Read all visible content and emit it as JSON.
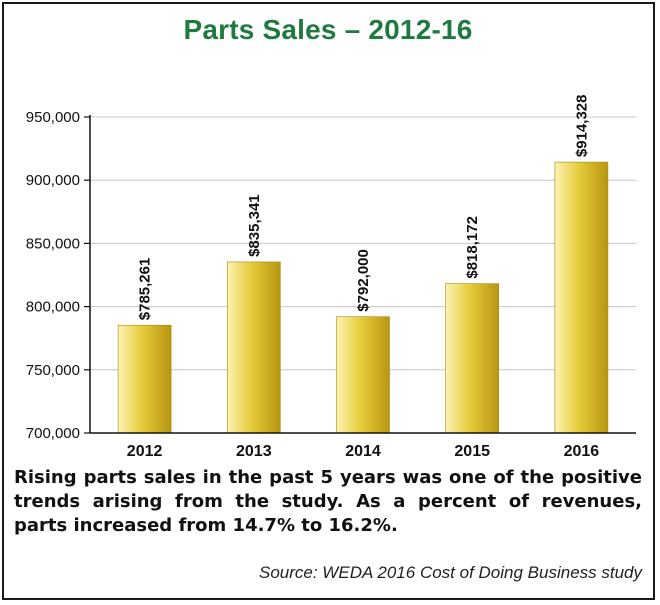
{
  "chart_data": {
    "type": "bar",
    "title": "Parts Sales – 2012-16",
    "categories": [
      "2012",
      "2013",
      "2014",
      "2015",
      "2016"
    ],
    "values": [
      785261,
      835341,
      792000,
      818172,
      914328
    ],
    "data_labels": [
      "$785,261",
      "$835,341",
      "$792,000",
      "$818,172",
      "$914,328"
    ],
    "ylim": [
      700000,
      950000
    ],
    "yticks": [
      700000,
      750000,
      800000,
      850000,
      900000,
      950000
    ],
    "ytick_labels": [
      "700,000",
      "750,000",
      "800,000",
      "850,000",
      "900,000",
      "950,000"
    ],
    "grid": true,
    "bar_color": "#d4b81e",
    "grid_color": "#c8c8c8"
  },
  "caption": "Rising parts sales in the past 5 years was one of the positive trends arising from the study. As a percent of revenues, parts increased from 14.7% to 16.2%.",
  "source": "Source: WEDA 2016 Cost of Doing Business study",
  "colors": {
    "title": "#1f7a3f"
  }
}
